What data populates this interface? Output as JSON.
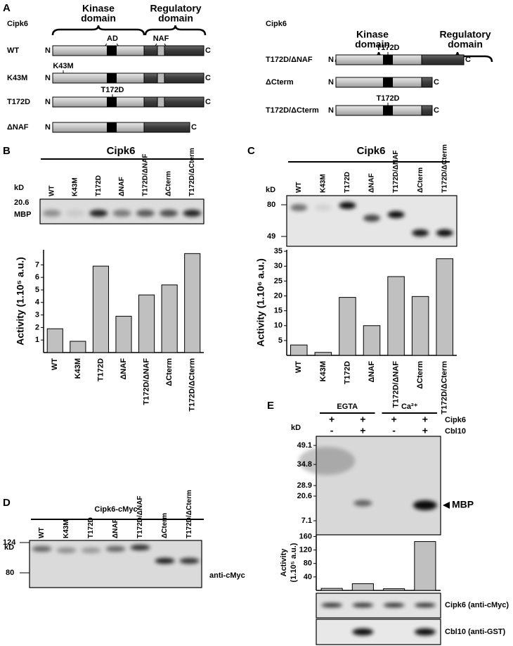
{
  "panel_a": {
    "label": "A",
    "n_terminus": "N",
    "c_terminus": "C",
    "left": {
      "protein": "Cipk6",
      "kinase_domain": [
        "Kinase",
        "domain"
      ],
      "regulatory_domain": [
        "Regulatory",
        "domain"
      ],
      "ad": "AD",
      "naf": "NAF",
      "constructs": [
        {
          "name": "WT"
        },
        {
          "name": "K43M",
          "mutation": "K43M"
        },
        {
          "name": "T172D",
          "mutation": "T172D"
        },
        {
          "name": "ΔNAF"
        }
      ]
    },
    "right": {
      "protein": "Cipk6",
      "kinase_domain": [
        "Kinase",
        "domain"
      ],
      "regulatory_domain": [
        "Regulatory",
        "domain"
      ],
      "constructs": [
        {
          "name": "T172D/ΔNAF",
          "mutation": "T172D"
        },
        {
          "name": "ΔCterm"
        },
        {
          "name": "T172D/ΔCterm",
          "mutation": "T172D"
        }
      ]
    }
  },
  "panel_b": {
    "label": "B",
    "title": "Cipk6",
    "kd": "kD",
    "marker": "20.6",
    "band": "MBP"
  },
  "panel_c": {
    "label": "C",
    "title": "Cipk6",
    "kd": "kD",
    "markers": [
      "80",
      "49"
    ]
  },
  "panel_d": {
    "label": "D",
    "title": "Cipk6-cMyc",
    "kd": "kD",
    "markers": [
      "124",
      "80"
    ],
    "antibody": "anti-cMyc"
  },
  "panel_e": {
    "label": "E",
    "conditions": [
      "EGTA",
      "Ca²⁺"
    ],
    "row_labels": [
      "Cipk6",
      "Cbl10"
    ],
    "cipk6": [
      "+",
      "+",
      "+",
      "+"
    ],
    "cbl10": [
      "-",
      "+",
      "-",
      "+"
    ],
    "kd": "kD",
    "markers": [
      "49.1",
      "34.8",
      "28.9",
      "20.6",
      "7.1"
    ],
    "band": "MBP",
    "blots": [
      "Cipk6 (anti-cMyc)",
      "Cbl10 (anti-GST)"
    ]
  },
  "chart_data": [
    {
      "type": "bar",
      "y_label": "Activity (1.10⁵ a.u.)",
      "categories": [
        "WT",
        "K43M",
        "T172D",
        "ΔNAF",
        "T172D/ΔNAF",
        "ΔCterm",
        "T172D/ΔCterm"
      ],
      "values": [
        1.9,
        0.9,
        6.9,
        2.9,
        4.6,
        5.4,
        7.9
      ],
      "color": "#c0c0c0",
      "ylim": [
        0,
        8.2
      ],
      "yticks": [
        1,
        2,
        3,
        4,
        5,
        6,
        7
      ]
    },
    {
      "type": "bar",
      "y_label": "Activity (1.10⁶ a.u.)",
      "categories": [
        "WT",
        "K43M",
        "T172D",
        "ΔNAF",
        "T172D/ΔNAF",
        "ΔCterm",
        "T172D/ΔCterm"
      ],
      "values": [
        3.5,
        1,
        19.5,
        10,
        26.5,
        19.8,
        32.5
      ],
      "color": "#c0c0c0",
      "ylim": [
        0,
        35.5
      ],
      "yticks": [
        5,
        10,
        15,
        20,
        25,
        30,
        35
      ]
    },
    {
      "type": "bar",
      "y_label": [
        "Activity",
        "(1.10⁵ a.u.)"
      ],
      "categories": [
        null,
        null,
        null,
        null
      ],
      "values": [
        6,
        20,
        5,
        145
      ],
      "color": "#c0c0c0",
      "ylim": [
        0,
        165
      ],
      "yticks": [
        40,
        80,
        120,
        160
      ]
    }
  ]
}
